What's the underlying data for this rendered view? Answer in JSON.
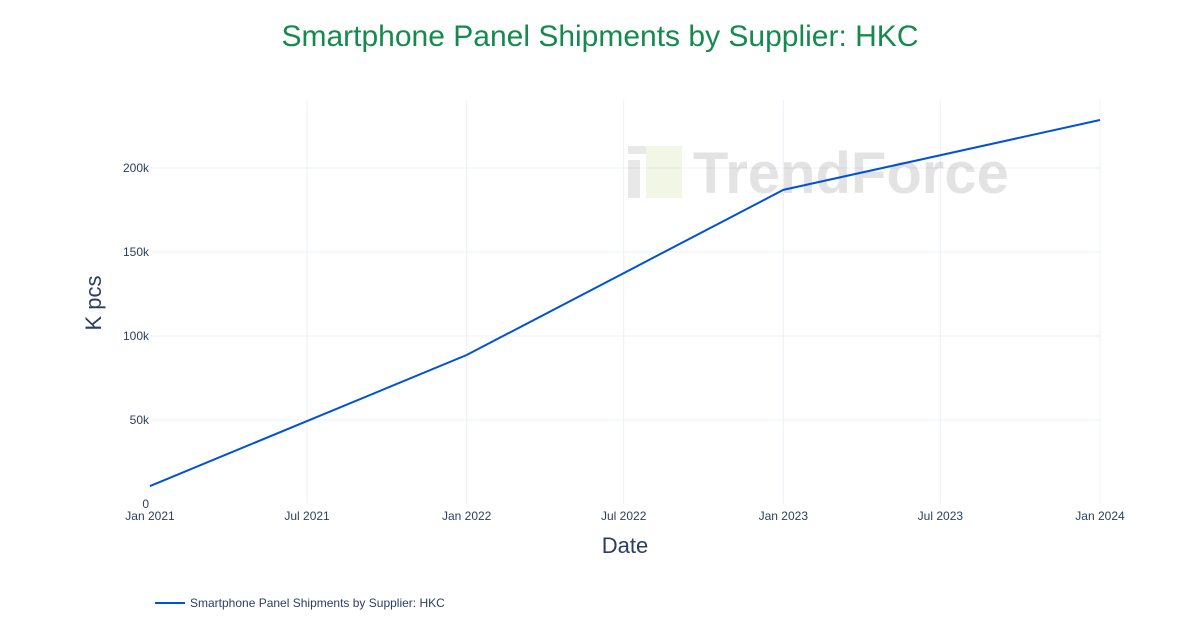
{
  "chart_data": {
    "type": "line",
    "title": "Smartphone Panel Shipments by Supplier: HKC",
    "xlabel": "Date",
    "ylabel": "K pcs",
    "x": [
      "2021-01-01",
      "2022-01-01",
      "2023-01-01",
      "2024-01-01"
    ],
    "series": [
      {
        "name": "Smartphone Panel Shipments by Supplier: HKC",
        "values": [
          10700,
          88700,
          187000,
          228600
        ],
        "color": "#0052d6"
      }
    ],
    "xlim": [
      "2021-01-01",
      "2024-01-01"
    ],
    "ylim": [
      0,
      240500
    ],
    "x_ticks": [
      {
        "date": "2021-01-01",
        "label": "Jan 2021"
      },
      {
        "date": "2021-07-01",
        "label": "Jul 2021"
      },
      {
        "date": "2022-01-01",
        "label": "Jan 2022"
      },
      {
        "date": "2022-07-01",
        "label": "Jul 2022"
      },
      {
        "date": "2023-01-01",
        "label": "Jan 2023"
      },
      {
        "date": "2023-07-01",
        "label": "Jul 2023"
      },
      {
        "date": "2024-01-01",
        "label": "Jan 2024"
      }
    ],
    "y_ticks": [
      {
        "value": 0,
        "label": "0"
      },
      {
        "value": 50000,
        "label": "50k"
      },
      {
        "value": 100000,
        "label": "100k"
      },
      {
        "value": 150000,
        "label": "150k"
      },
      {
        "value": 200000,
        "label": "200k"
      }
    ],
    "grid": true,
    "legend_position": "bottom-left",
    "title_color": "#168a4e"
  },
  "watermark": "TrendForce"
}
